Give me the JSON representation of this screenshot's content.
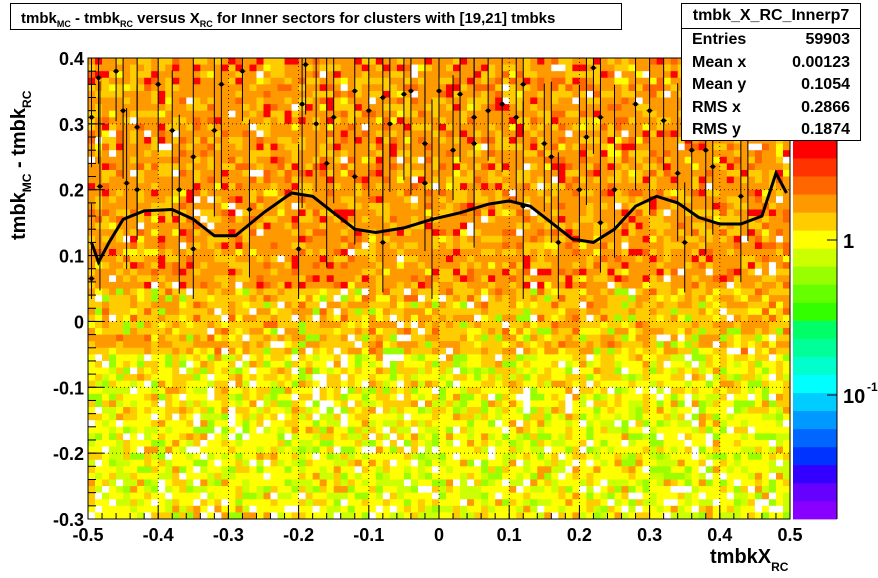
{
  "title": {
    "p1": "tmbk",
    "s1": "MC",
    "p2": " - tmbk",
    "s2": "RC",
    "p3": " versus X",
    "s3": "RC",
    "p4": " for Inner sectors for clusters with [19,21] tmbks"
  },
  "stats": {
    "name": "tmbk_X_RC_Innerp7",
    "rows": [
      {
        "label": "Entries",
        "value": "59903"
      },
      {
        "label": "Mean x",
        "value": "0.00123"
      },
      {
        "label": "Mean y",
        "value": "0.1054"
      },
      {
        "label": "RMS x",
        "value": "0.2866"
      },
      {
        "label": "RMS y",
        "value": "0.1874"
      }
    ]
  },
  "axes": {
    "ylabel_main": "tmbk",
    "ylabel_sub1": "MC",
    "ylabel_mid": " - tmbk",
    "ylabel_sub2": "RC",
    "xlabel_main": "tmbkX",
    "xlabel_sub": "RC"
  },
  "chart_data": {
    "type": "heatmap",
    "xlim": [
      -0.5,
      0.5
    ],
    "ylim": [
      -0.3,
      0.4
    ],
    "x_ticks": [
      "-0.5",
      "-0.4",
      "-0.3",
      "-0.2",
      "-0.1",
      "0",
      "0.1",
      "0.2",
      "0.3",
      "0.4",
      "0.5"
    ],
    "y_ticks": [
      "-0.3",
      "-0.2",
      "-0.1",
      "0",
      "0.1",
      "0.2",
      "0.3",
      "0.4"
    ],
    "z_scale": "log",
    "z_labels": [
      {
        "base": "10",
        "exp": "",
        "value": 1
      },
      {
        "base": "10",
        "exp": "-1",
        "value": 0.1
      }
    ],
    "grid": true,
    "profile_points": [
      [
        -0.495,
        0.31
      ],
      [
        -0.495,
        0.065
      ],
      [
        -0.485,
        0.37
      ],
      [
        -0.483,
        0.205
      ],
      [
        -0.46,
        0.38
      ],
      [
        -0.45,
        0.32
      ],
      [
        -0.445,
        0.21
      ],
      [
        -0.43,
        0.295
      ],
      [
        -0.43,
        0.2
      ],
      [
        -0.4,
        0.36
      ],
      [
        -0.38,
        0.29
      ],
      [
        -0.37,
        0.2
      ],
      [
        -0.35,
        0.11
      ],
      [
        -0.35,
        0.25
      ],
      [
        -0.32,
        0.29
      ],
      [
        -0.31,
        0.36
      ],
      [
        -0.28,
        0.38
      ],
      [
        -0.27,
        0.17
      ],
      [
        -0.2,
        0.11
      ],
      [
        -0.195,
        0.33
      ],
      [
        -0.19,
        0.39
      ],
      [
        -0.175,
        0.3
      ],
      [
        -0.15,
        0.31
      ],
      [
        -0.16,
        0.24
      ],
      [
        -0.12,
        0.35
      ],
      [
        -0.12,
        0.22
      ],
      [
        -0.1,
        0.32
      ],
      [
        -0.08,
        0.34
      ],
      [
        -0.08,
        0.12
      ],
      [
        -0.07,
        0.3
      ],
      [
        -0.05,
        0.345
      ],
      [
        -0.04,
        0.35
      ],
      [
        -0.02,
        0.27
      ],
      [
        -0.02,
        0.21
      ],
      [
        -0.01,
        0.155
      ],
      [
        0.0,
        0.35
      ],
      [
        0.02,
        0.26
      ],
      [
        0.03,
        0.345
      ],
      [
        0.05,
        0.31
      ],
      [
        0.05,
        0.27
      ],
      [
        0.07,
        0.32
      ],
      [
        0.09,
        0.33
      ],
      [
        0.11,
        0.31
      ],
      [
        0.12,
        0.175
      ],
      [
        0.12,
        0.36
      ],
      [
        0.15,
        0.27
      ],
      [
        0.16,
        0.25
      ],
      [
        0.17,
        0.12
      ],
      [
        0.2,
        0.2
      ],
      [
        0.21,
        0.28
      ],
      [
        0.22,
        0.385
      ],
      [
        0.23,
        0.31
      ],
      [
        0.23,
        0.15
      ],
      [
        0.25,
        0.2
      ],
      [
        0.28,
        0.33
      ],
      [
        0.3,
        0.32
      ],
      [
        0.32,
        0.305
      ],
      [
        0.34,
        0.225
      ],
      [
        0.36,
        0.26
      ],
      [
        0.38,
        0.26
      ],
      [
        0.35,
        0.12
      ],
      [
        0.39,
        0.235
      ],
      [
        0.43,
        0.19
      ],
      [
        0.44,
        0.28
      ]
    ],
    "fit_curve": [
      [
        -0.495,
        0.12
      ],
      [
        -0.485,
        0.09
      ],
      [
        -0.47,
        0.12
      ],
      [
        -0.45,
        0.155
      ],
      [
        -0.42,
        0.168
      ],
      [
        -0.38,
        0.17
      ],
      [
        -0.35,
        0.155
      ],
      [
        -0.32,
        0.13
      ],
      [
        -0.29,
        0.13
      ],
      [
        -0.25,
        0.165
      ],
      [
        -0.21,
        0.195
      ],
      [
        -0.18,
        0.19
      ],
      [
        -0.15,
        0.165
      ],
      [
        -0.12,
        0.14
      ],
      [
        -0.09,
        0.135
      ],
      [
        -0.05,
        0.142
      ],
      [
        -0.01,
        0.155
      ],
      [
        0.03,
        0.165
      ],
      [
        0.07,
        0.178
      ],
      [
        0.1,
        0.183
      ],
      [
        0.13,
        0.175
      ],
      [
        0.16,
        0.15
      ],
      [
        0.19,
        0.125
      ],
      [
        0.22,
        0.12
      ],
      [
        0.25,
        0.14
      ],
      [
        0.28,
        0.175
      ],
      [
        0.31,
        0.19
      ],
      [
        0.34,
        0.18
      ],
      [
        0.37,
        0.158
      ],
      [
        0.4,
        0.148
      ],
      [
        0.43,
        0.148
      ],
      [
        0.46,
        0.16
      ],
      [
        0.48,
        0.225
      ],
      [
        0.495,
        0.195
      ]
    ]
  }
}
